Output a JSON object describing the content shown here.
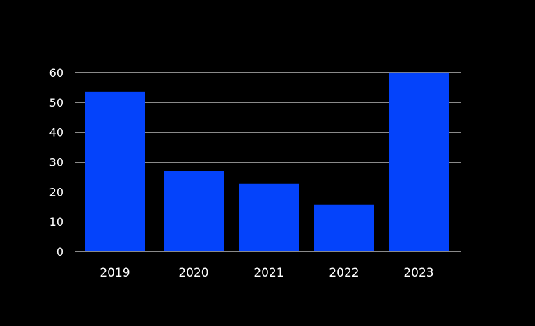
{
  "chart_data": {
    "type": "bar",
    "categories": [
      "2019",
      "2020",
      "2021",
      "2022",
      "2023"
    ],
    "values": [
      53.5,
      27,
      22.7,
      15.7,
      59.8
    ],
    "yticks": [
      0,
      10,
      20,
      30,
      40,
      50,
      60
    ],
    "ylim": [
      0,
      60
    ],
    "grid": true,
    "legend": "none",
    "title": "",
    "xlabel": "",
    "ylabel": "",
    "colors": {
      "background": "#000000",
      "bar": "#0443fb",
      "grid": "#8a8a8a",
      "text": "#ffffff"
    }
  }
}
